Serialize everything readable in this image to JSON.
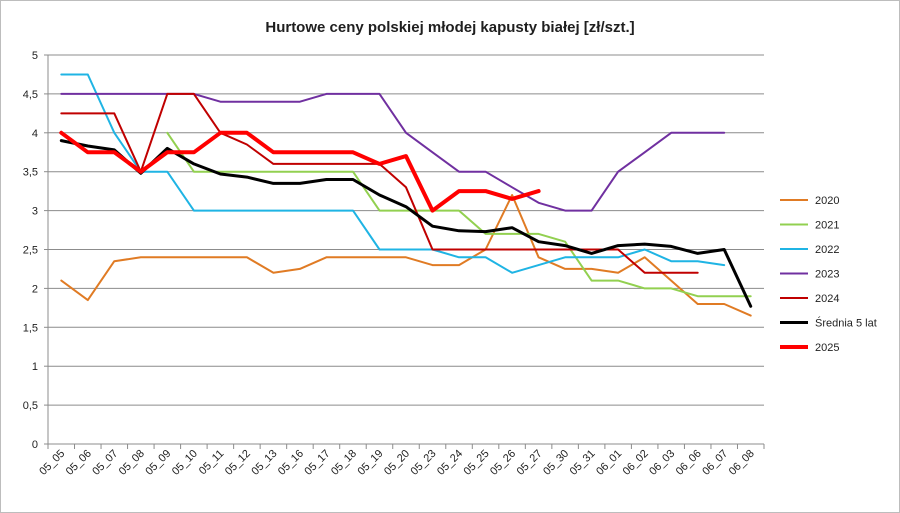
{
  "chart_data": {
    "type": "line",
    "title": "Hurtowe ceny polskiej młodej kapusty białej [zł/szt.]",
    "xlabel": "",
    "ylabel": "",
    "ylim": [
      0,
      5
    ],
    "y_ticks": [
      "0",
      "0,5",
      "1",
      "1,5",
      "2",
      "2,5",
      "3",
      "3,5",
      "4",
      "4,5",
      "5"
    ],
    "grid": "horizontal",
    "legend_position": "right",
    "categories": [
      "05_05",
      "05_06",
      "05_07",
      "05_08",
      "05_09",
      "05_10",
      "05_11",
      "05_12",
      "05_13",
      "05_16",
      "05_17",
      "05_18",
      "05_19",
      "05_20",
      "05_23",
      "05_24",
      "05_25",
      "05_26",
      "05_27",
      "05_30",
      "05_31",
      "06_01",
      "06_02",
      "06_03",
      "06_06",
      "06_07",
      "06_08"
    ],
    "series": [
      {
        "name": "2020",
        "color": "#e07b24",
        "width": 2,
        "values": [
          2.1,
          1.85,
          2.35,
          2.4,
          2.4,
          2.4,
          2.4,
          2.4,
          2.2,
          2.25,
          2.4,
          2.4,
          2.4,
          2.4,
          2.3,
          2.3,
          2.5,
          3.2,
          2.4,
          2.25,
          2.25,
          2.2,
          2.4,
          2.1,
          1.8,
          1.8,
          1.65
        ]
      },
      {
        "name": "2021",
        "color": "#92d050",
        "width": 2,
        "values": [
          null,
          null,
          null,
          null,
          4.0,
          3.5,
          3.5,
          3.5,
          3.5,
          3.5,
          3.5,
          3.5,
          3.0,
          3.0,
          3.0,
          3.0,
          2.7,
          2.7,
          2.7,
          2.6,
          2.1,
          2.1,
          2.0,
          2.0,
          1.9,
          1.9,
          1.9
        ]
      },
      {
        "name": "2022",
        "color": "#1fb4e4",
        "width": 2,
        "values": [
          4.75,
          4.75,
          4.0,
          3.5,
          3.5,
          3.0,
          3.0,
          3.0,
          3.0,
          3.0,
          3.0,
          3.0,
          2.5,
          2.5,
          2.5,
          2.4,
          2.4,
          2.2,
          2.3,
          2.4,
          2.4,
          2.4,
          2.5,
          2.35,
          2.35,
          2.3,
          null
        ]
      },
      {
        "name": "2023",
        "color": "#7030a0",
        "width": 2,
        "values": [
          4.5,
          4.5,
          4.5,
          4.5,
          4.5,
          4.5,
          4.4,
          4.4,
          4.4,
          4.4,
          4.5,
          4.5,
          4.5,
          4.0,
          3.75,
          3.5,
          3.5,
          3.3,
          3.1,
          3.0,
          3.0,
          3.5,
          3.75,
          4.0,
          4.0,
          4.0,
          null
        ]
      },
      {
        "name": "2024",
        "color": "#c00000",
        "width": 2,
        "values": [
          4.25,
          4.25,
          4.25,
          3.5,
          4.5,
          4.5,
          4.0,
          3.85,
          3.6,
          3.6,
          3.6,
          3.6,
          3.6,
          3.3,
          2.5,
          2.5,
          2.5,
          2.5,
          2.5,
          2.5,
          2.5,
          2.5,
          2.2,
          2.2,
          2.2,
          null,
          null
        ]
      },
      {
        "name": "Średnia 5 lat",
        "color": "#000000",
        "width": 3,
        "values": [
          3.9,
          3.83,
          3.78,
          3.48,
          3.8,
          3.6,
          3.47,
          3.43,
          3.35,
          3.35,
          3.4,
          3.4,
          3.2,
          3.05,
          2.8,
          2.74,
          2.73,
          2.78,
          2.6,
          2.55,
          2.45,
          2.55,
          2.57,
          2.54,
          2.45,
          2.5,
          1.77
        ]
      },
      {
        "name": "2025",
        "color": "#ff0000",
        "width": 4,
        "values": [
          4.0,
          3.75,
          3.75,
          3.5,
          3.75,
          3.75,
          4.0,
          4.0,
          3.75,
          3.75,
          3.75,
          3.75,
          3.6,
          3.7,
          3.0,
          3.25,
          3.25,
          3.15,
          3.25,
          null,
          null,
          null,
          null,
          null,
          null,
          null,
          null
        ]
      }
    ]
  }
}
